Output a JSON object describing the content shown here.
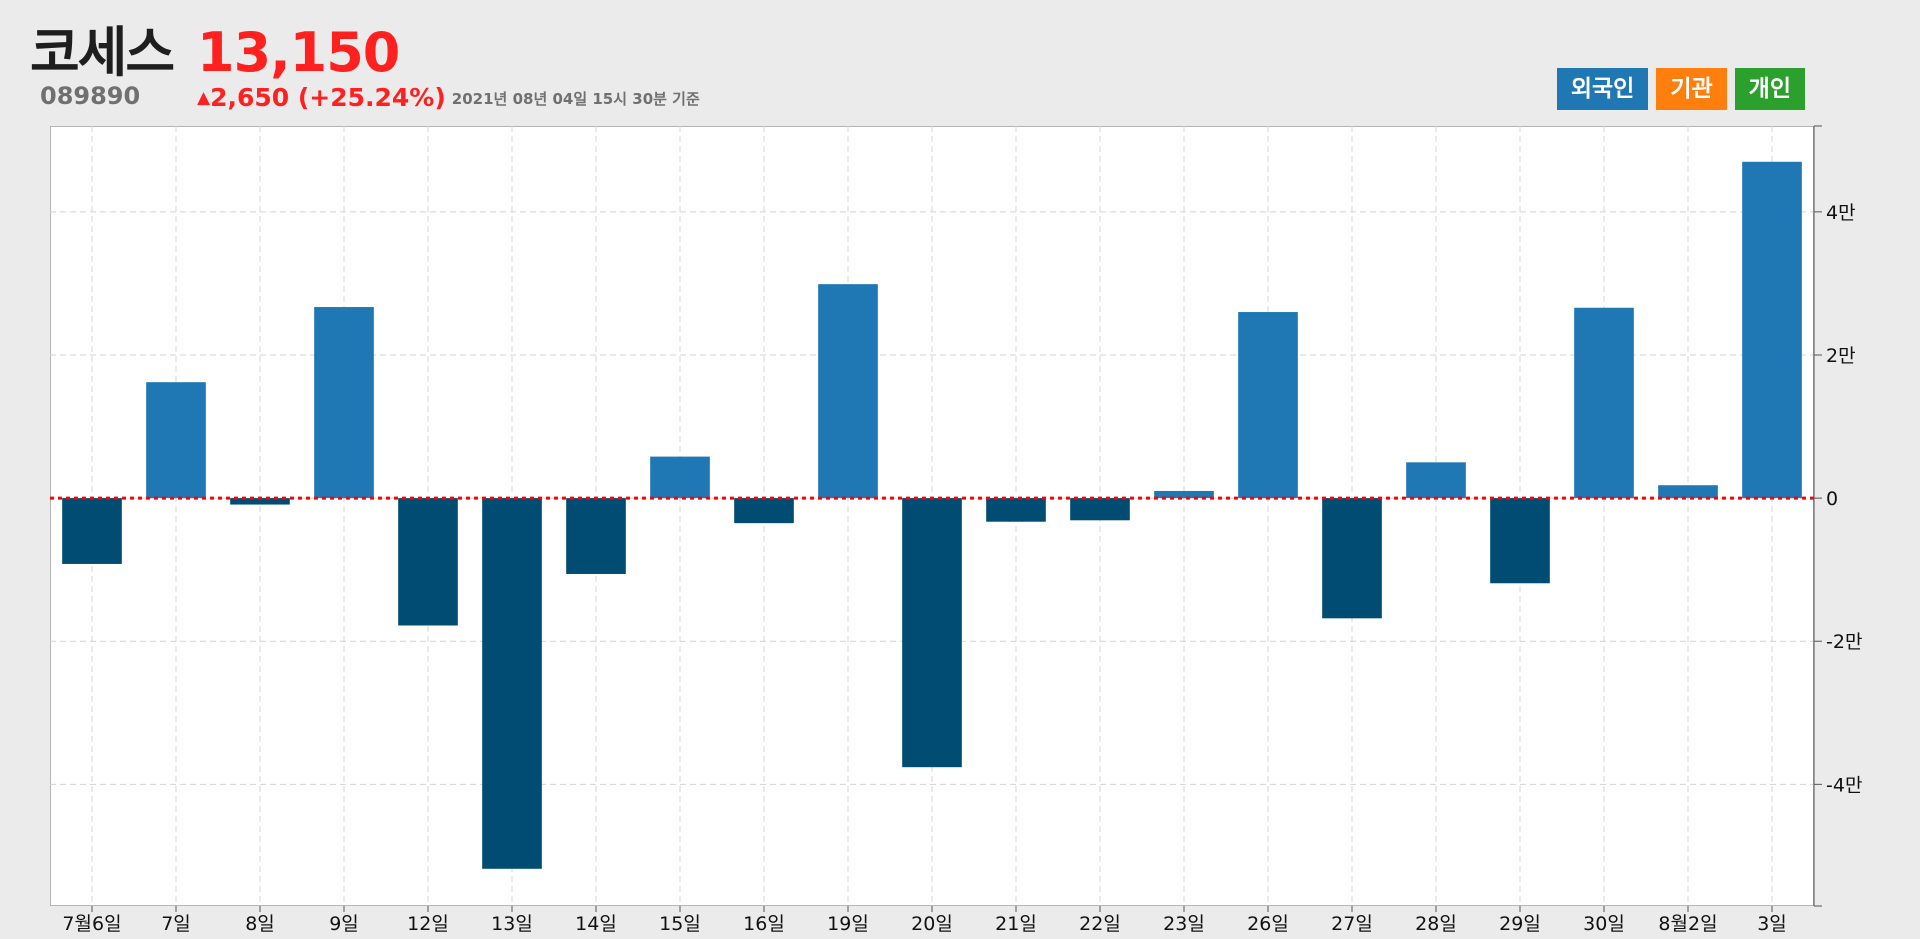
{
  "header": {
    "name": "코세스",
    "price": "13,150",
    "code": "089890",
    "change": "2,650 (+25.24%)",
    "change_arrow": "▲",
    "as_of": "2021년 08년 04일 15시 30분 기준"
  },
  "legend": [
    {
      "label": "외국인",
      "color": "#1f77b4"
    },
    {
      "label": "기관",
      "color": "#ff7f0e"
    },
    {
      "label": "개인",
      "color": "#2ca02c"
    }
  ],
  "colors": {
    "positive_bar": "#1f77b4",
    "negative_bar": "#004c73",
    "zero_line": "#ff0000",
    "grid": "#d4d4d4"
  },
  "chart_data": {
    "type": "bar",
    "title": "",
    "xlabel": "",
    "ylabel": "",
    "categories": [
      "7월6일",
      "7일",
      "8일",
      "9일",
      "12일",
      "13일",
      "14일",
      "15일",
      "16일",
      "19일",
      "20일",
      "21일",
      "22일",
      "23일",
      "26일",
      "27일",
      "28일",
      "29일",
      "30일",
      "8월2일",
      "3일"
    ],
    "series": [
      {
        "values": [
          -9200,
          16200,
          -900,
          26700,
          -17800,
          -51800,
          -10600,
          5800,
          -3500,
          29900,
          -37600,
          -3300,
          -3100,
          1000,
          26000,
          -16800,
          5000,
          -11900,
          26600,
          1800,
          47000
        ]
      }
    ],
    "ylim": [
      -57000,
      52000
    ],
    "yticks": [
      -40000,
      -20000,
      0,
      20000,
      40000
    ],
    "ytick_labels": [
      "-4만",
      "-2만",
      "0",
      "2만",
      "4만"
    ],
    "grid": true,
    "zero_line": "dotted-red",
    "y_axis_side": "right"
  }
}
